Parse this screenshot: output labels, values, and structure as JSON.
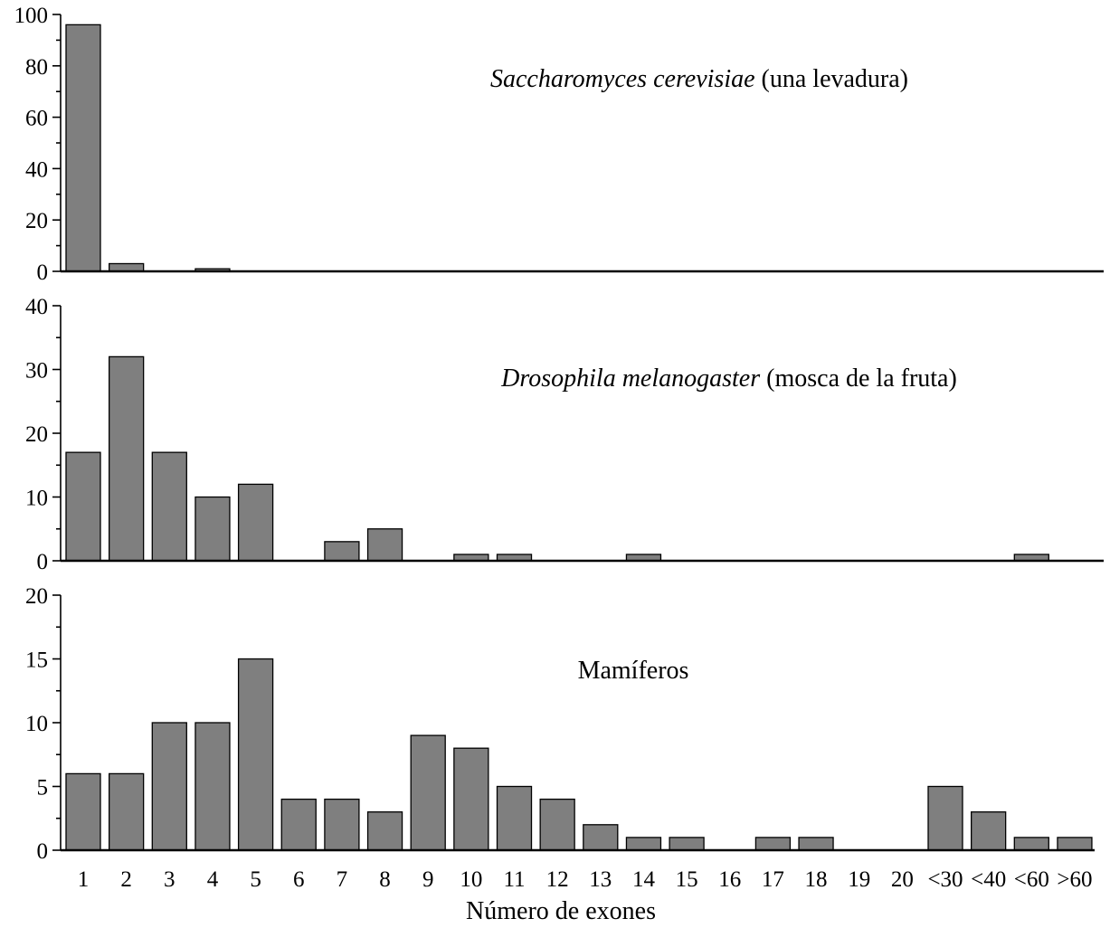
{
  "chart_data": [
    {
      "type": "bar",
      "title_italic": "Saccharomyces cerevisiae",
      "title_rest": " (una levadura)",
      "ylim": [
        0,
        100
      ],
      "yticks": [
        "0",
        "20",
        "40",
        "60",
        "80",
        "100"
      ],
      "values": [
        96,
        3,
        0,
        1,
        0,
        0,
        0,
        0,
        0,
        0,
        0,
        0,
        0,
        0,
        0,
        0,
        0,
        0,
        0,
        0,
        0,
        0,
        0,
        0
      ]
    },
    {
      "type": "bar",
      "title_italic": "Drosophila melanogaster",
      "title_rest": " (mosca de la fruta)",
      "ylim": [
        0,
        40
      ],
      "yticks": [
        "0",
        "10",
        "20",
        "30",
        "40"
      ],
      "values": [
        17,
        32,
        17,
        10,
        12,
        0,
        3,
        5,
        0,
        1,
        1,
        0,
        0,
        1,
        0,
        0,
        0,
        0,
        0,
        0,
        0,
        0,
        1,
        0
      ]
    },
    {
      "type": "bar",
      "title_italic": "",
      "title_rest": "Mamíferos",
      "ylim": [
        0,
        20
      ],
      "yticks": [
        "0",
        "5",
        "10",
        "15",
        "20"
      ],
      "values": [
        6,
        6,
        10,
        10,
        15,
        4,
        4,
        3,
        9,
        8,
        5,
        4,
        2,
        1,
        1,
        0,
        1,
        1,
        0,
        0,
        5,
        3,
        1,
        1
      ]
    }
  ],
  "categories": [
    "1",
    "2",
    "3",
    "4",
    "5",
    "6",
    "7",
    "8",
    "9",
    "10",
    "11",
    "12",
    "13",
    "14",
    "15",
    "16",
    "17",
    "18",
    "19",
    "20",
    "<30",
    "<40",
    "<60",
    ">60"
  ],
  "xlabel": "Número de exones"
}
